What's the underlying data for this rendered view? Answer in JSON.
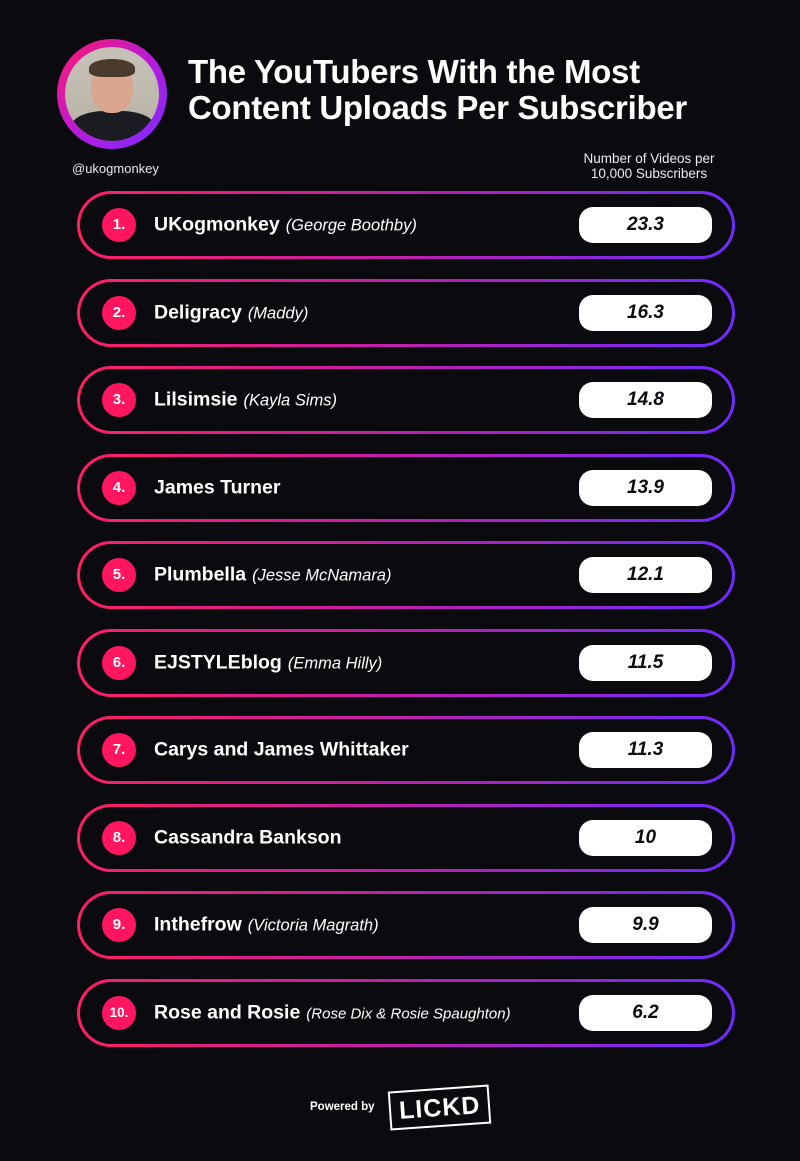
{
  "header": {
    "title": "The YouTubers With the Most\nContent Uploads Per Subscriber",
    "handle": "@ukogmonkey",
    "column_header": "Number of Videos per\n10,000 Subscribers"
  },
  "chart_data": {
    "type": "table",
    "title": "The YouTubers With the Most Content Uploads Per Subscriber",
    "value_label": "Number of Videos per 10,000 Subscribers",
    "rows": [
      {
        "rank": "1.",
        "name": "UKogmonkey",
        "real_name": "(George Boothby)",
        "value": "23.3"
      },
      {
        "rank": "2.",
        "name": "Deligracy",
        "real_name": "(Maddy)",
        "value": "16.3"
      },
      {
        "rank": "3.",
        "name": "Lilsimsie",
        "real_name": "(Kayla Sims)",
        "value": "14.8"
      },
      {
        "rank": "4.",
        "name": "James Turner",
        "real_name": "",
        "value": "13.9"
      },
      {
        "rank": "5.",
        "name": "Plumbella",
        "real_name": "(Jesse McNamara)",
        "value": "12.1"
      },
      {
        "rank": "6.",
        "name": "EJSTYLEblog",
        "real_name": "(Emma Hilly)",
        "value": "11.5"
      },
      {
        "rank": "7.",
        "name": "Carys and James Whittaker",
        "real_name": "",
        "value": "11.3"
      },
      {
        "rank": "8.",
        "name": "Cassandra Bankson",
        "real_name": "",
        "value": "10"
      },
      {
        "rank": "9.",
        "name": "Inthefrow",
        "real_name": "(Victoria Magrath)",
        "value": "9.9"
      },
      {
        "rank": "10.",
        "name": "Rose and Rosie",
        "real_name": "(Rose Dix & Rosie Spaughton)",
        "value": "6.2"
      }
    ]
  },
  "footer": {
    "powered_by": "Powered by",
    "logo_text": "LICKD"
  },
  "colors": {
    "background": "#0b0a0f",
    "accent_pink": "#ff1560",
    "accent_purple": "#6e2bff"
  }
}
